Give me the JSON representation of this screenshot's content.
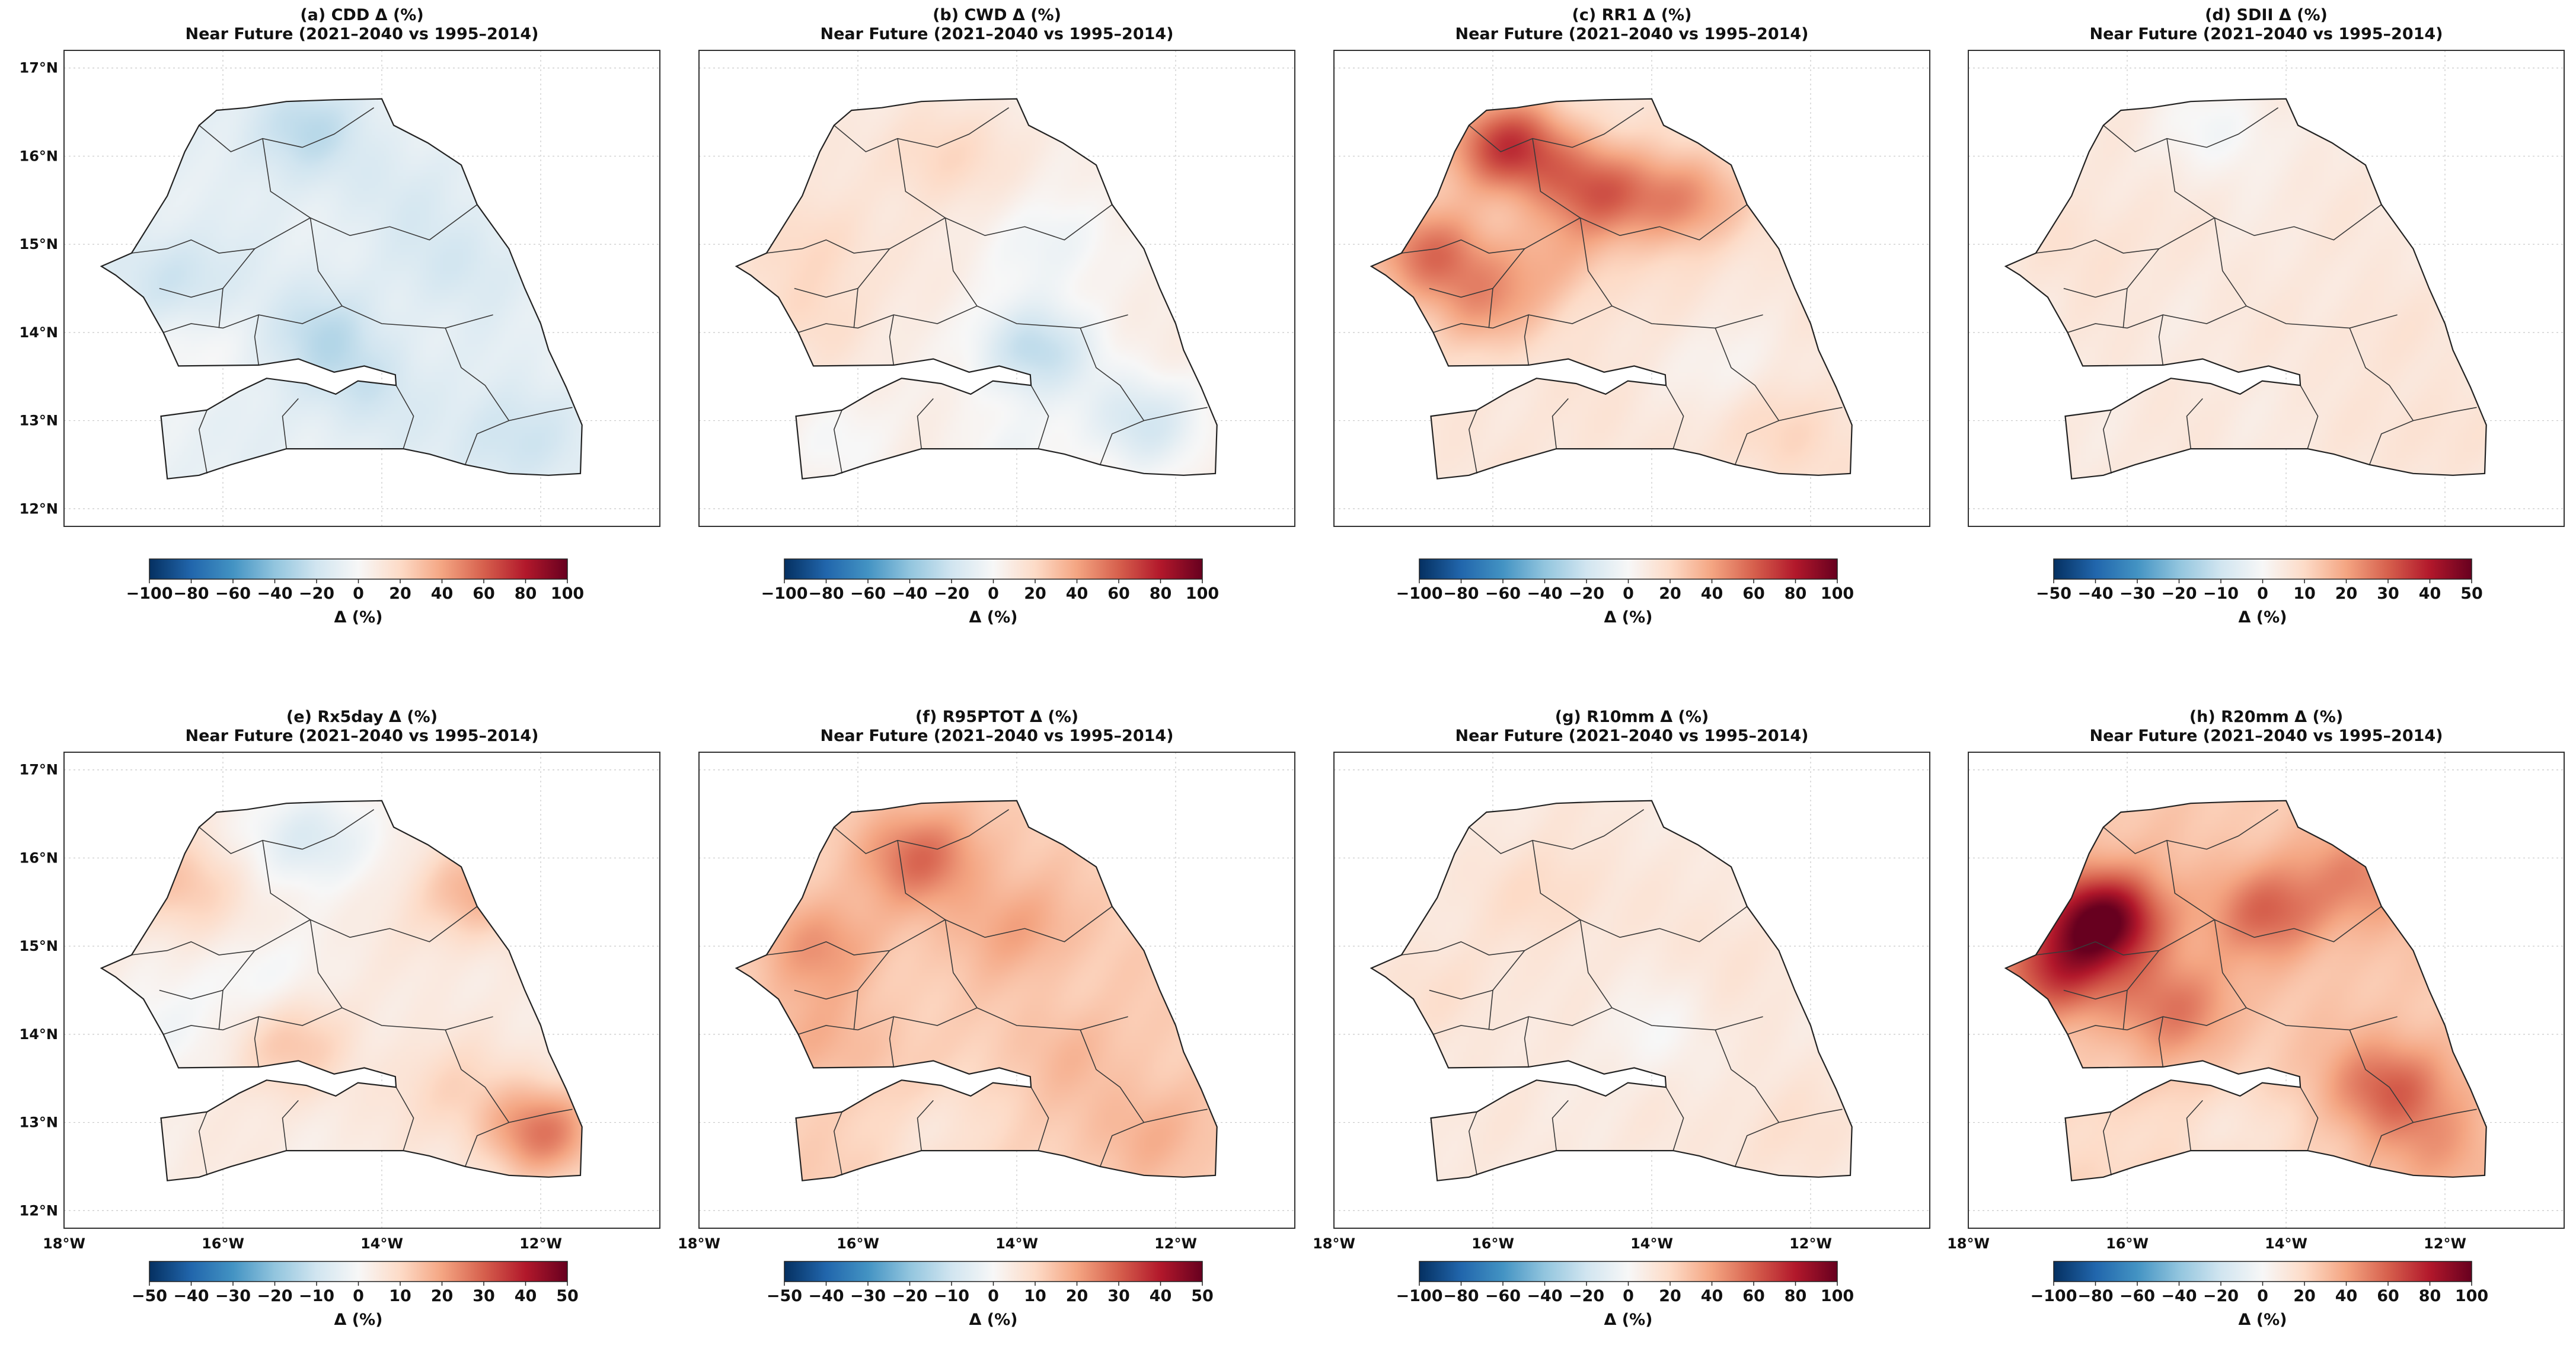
{
  "figure": {
    "colormap": {
      "name": "RdBu_r",
      "stops": [
        "#053061",
        "#2166ac",
        "#4393c3",
        "#92c5de",
        "#d1e5f0",
        "#f7f7f7",
        "#fddbc7",
        "#f4a582",
        "#d6604d",
        "#b2182b",
        "#67001f"
      ]
    },
    "map_extent": {
      "lon": [
        -18,
        -10.5
      ],
      "lat": [
        11.8,
        17.2
      ]
    },
    "lon_ticks": [
      -18,
      -16,
      -14,
      -12
    ],
    "lat_ticks": [
      12,
      13,
      14,
      15,
      16,
      17
    ]
  },
  "chart_data": [
    {
      "type": "heatmap",
      "panel": "a",
      "title": "(a) CDD Δ (%)",
      "subtitle": "Near Future (2021–2040 vs 1995–2014)",
      "colorbar": {
        "label": "Δ (%)",
        "range": [
          -100,
          100
        ],
        "ticks": [
          "−100",
          "−80",
          "−60",
          "−40",
          "−20",
          "0",
          "20",
          "40",
          "60",
          "80",
          "100"
        ]
      },
      "xticklabels": [],
      "yticklabels": [
        "12°N",
        "13°N",
        "14°N",
        "15°N",
        "16°N",
        "17°N"
      ],
      "field_summary": {
        "base": -8,
        "blobs": [
          [
            -15.0,
            16.3,
            -18
          ],
          [
            -16.6,
            14.6,
            -14
          ],
          [
            -14.8,
            14.0,
            -16
          ],
          [
            -13.0,
            14.8,
            -10
          ],
          [
            -14.2,
            13.4,
            -12
          ],
          [
            -12.4,
            12.8,
            -14
          ],
          [
            -16.5,
            13.8,
            10
          ],
          [
            -13.8,
            15.6,
            -6
          ]
        ]
      }
    },
    {
      "type": "heatmap",
      "panel": "b",
      "title": "(b) CWD Δ (%)",
      "subtitle": "Near Future (2021–2040 vs 1995–2014)",
      "colorbar": {
        "label": "Δ (%)",
        "range": [
          -100,
          100
        ],
        "ticks": [
          "−100",
          "−80",
          "−60",
          "−40",
          "−20",
          "0",
          "20",
          "40",
          "60",
          "80",
          "100"
        ]
      },
      "xticklabels": [],
      "yticklabels": [],
      "field_summary": {
        "base": 8,
        "blobs": [
          [
            -13.8,
            13.8,
            -34
          ],
          [
            -12.4,
            13.0,
            -26
          ],
          [
            -13.5,
            15.0,
            -14
          ],
          [
            -15.0,
            16.0,
            14
          ],
          [
            -16.5,
            15.0,
            12
          ],
          [
            -14.0,
            12.6,
            -10
          ],
          [
            -16.2,
            12.8,
            -8
          ],
          [
            -16.6,
            14.2,
            10
          ]
        ]
      }
    },
    {
      "type": "heatmap",
      "panel": "c",
      "title": "(c) RR1 Δ (%)",
      "subtitle": "Near Future (2021–2040 vs 1995–2014)",
      "colorbar": {
        "label": "Δ (%)",
        "range": [
          -100,
          100
        ],
        "ticks": [
          "−100",
          "−80",
          "−60",
          "−40",
          "−20",
          "0",
          "20",
          "40",
          "60",
          "80",
          "100"
        ]
      },
      "xticklabels": [],
      "yticklabels": [],
      "field_summary": {
        "base": 12,
        "blobs": [
          [
            -15.8,
            16.1,
            60
          ],
          [
            -14.7,
            15.6,
            42
          ],
          [
            -13.6,
            15.5,
            34
          ],
          [
            -16.8,
            14.9,
            42
          ],
          [
            -16.1,
            14.3,
            26
          ],
          [
            -13.0,
            13.6,
            -10
          ],
          [
            -12.3,
            12.9,
            10
          ],
          [
            -15.2,
            14.8,
            18
          ]
        ]
      }
    },
    {
      "type": "heatmap",
      "panel": "d",
      "title": "(d) SDII Δ (%)",
      "subtitle": "Near Future (2021–2040 vs 1995–2014)",
      "colorbar": {
        "label": "Δ (%)",
        "range": [
          -50,
          50
        ],
        "ticks": [
          "−50",
          "−40",
          "−30",
          "−20",
          "−10",
          "0",
          "10",
          "20",
          "30",
          "40",
          "50"
        ]
      },
      "xticklabels": [],
      "yticklabels": [],
      "field_summary": {
        "base": 5,
        "blobs": [
          [
            -14.8,
            16.3,
            -6
          ],
          [
            -16.5,
            15.0,
            3
          ],
          [
            -13.0,
            14.0,
            2
          ],
          [
            -12.2,
            12.9,
            3
          ]
        ]
      }
    },
    {
      "type": "heatmap",
      "panel": "e",
      "title": "(e) Rx5day Δ (%)",
      "subtitle": "Near Future (2021–2040 vs 1995–2014)",
      "colorbar": {
        "label": "Δ (%)",
        "range": [
          -50,
          50
        ],
        "ticks": [
          "−50",
          "−40",
          "−30",
          "−20",
          "−10",
          "0",
          "10",
          "20",
          "30",
          "40",
          "50"
        ]
      },
      "xticklabels": [
        "18°W",
        "16°W",
        "14°W",
        "12°W"
      ],
      "yticklabels": [
        "12°N",
        "13°N",
        "14°N",
        "15°N",
        "16°N",
        "17°N"
      ],
      "field_summary": {
        "base": 4,
        "blobs": [
          [
            -14.9,
            16.2,
            -12
          ],
          [
            -15.6,
            14.6,
            -6
          ],
          [
            -12.0,
            12.9,
            22
          ],
          [
            -16.5,
            15.7,
            10
          ],
          [
            -12.8,
            15.6,
            14
          ],
          [
            -15.2,
            13.9,
            10
          ],
          [
            -16.8,
            14.0,
            -6
          ],
          [
            -13.2,
            13.4,
            6
          ]
        ]
      }
    },
    {
      "type": "heatmap",
      "panel": "f",
      "title": "(f) R95PTOT Δ (%)",
      "subtitle": "Near Future (2021–2040 vs 1995–2014)",
      "colorbar": {
        "label": "Δ (%)",
        "range": [
          -50,
          50
        ],
        "ticks": [
          "−50",
          "−40",
          "−30",
          "−20",
          "−10",
          "0",
          "10",
          "20",
          "30",
          "40",
          "50"
        ]
      },
      "xticklabels": [
        "18°W",
        "16°W",
        "14°W",
        "12°W"
      ],
      "yticklabels": [],
      "field_summary": {
        "base": 12,
        "blobs": [
          [
            -15.2,
            16.0,
            16
          ],
          [
            -16.5,
            15.0,
            10
          ],
          [
            -14.0,
            15.2,
            8
          ],
          [
            -12.3,
            12.9,
            6
          ],
          [
            -15.0,
            12.9,
            -6
          ],
          [
            -13.3,
            13.8,
            4
          ],
          [
            -16.5,
            13.9,
            6
          ]
        ]
      }
    },
    {
      "type": "heatmap",
      "panel": "g",
      "title": "(g) R10mm Δ (%)",
      "subtitle": "Near Future (2021–2040 vs 1995–2014)",
      "colorbar": {
        "label": "Δ (%)",
        "range": [
          -100,
          100
        ],
        "ticks": [
          "−100",
          "−80",
          "−60",
          "−40",
          "−20",
          "0",
          "20",
          "40",
          "60",
          "80",
          "100"
        ]
      },
      "xticklabels": [
        "18°W",
        "16°W",
        "14°W",
        "12°W"
      ],
      "yticklabels": [],
      "field_summary": {
        "base": 10,
        "blobs": [
          [
            -15.3,
            15.6,
            10
          ],
          [
            -14.0,
            14.0,
            -8
          ],
          [
            -16.5,
            14.5,
            6
          ],
          [
            -12.4,
            12.9,
            6
          ],
          [
            -13.0,
            15.0,
            4
          ]
        ]
      }
    },
    {
      "type": "heatmap",
      "panel": "h",
      "title": "(h) R20mm Δ (%)",
      "subtitle": "Near Future (2021–2040 vs 1995–2014)",
      "colorbar": {
        "label": "Δ (%)",
        "range": [
          -100,
          100
        ],
        "ticks": [
          "−100",
          "−80",
          "−60",
          "−40",
          "−20",
          "0",
          "20",
          "40",
          "60",
          "80",
          "100"
        ]
      },
      "xticklabels": [
        "18°W",
        "16°W",
        "14°W",
        "12°W"
      ],
      "yticklabels": [],
      "field_summary": {
        "base": 26,
        "blobs": [
          [
            -16.3,
            15.3,
            74
          ],
          [
            -16.9,
            14.7,
            40
          ],
          [
            -14.2,
            15.4,
            32
          ],
          [
            -12.7,
            13.4,
            34
          ],
          [
            -13.0,
            15.8,
            22
          ],
          [
            -15.4,
            14.3,
            26
          ],
          [
            -14.6,
            12.9,
            -16
          ],
          [
            -16.4,
            12.8,
            -10
          ],
          [
            -12.0,
            12.7,
            14
          ]
        ]
      }
    }
  ]
}
